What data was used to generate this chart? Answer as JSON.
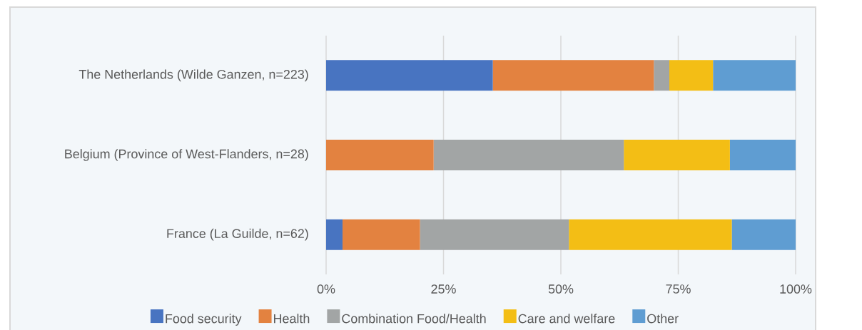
{
  "chart_data": {
    "type": "bar",
    "orientation": "horizontal",
    "stacked": true,
    "categories": [
      "The Netherlands (Wilde Ganzen, n=223)",
      "Belgium (Province of West-Flanders, n=28)",
      "France (La Guilde, n=62)"
    ],
    "series": [
      {
        "name": "Food security",
        "color": "#4874c1",
        "values": [
          35.5,
          0,
          3.5
        ]
      },
      {
        "name": "Health",
        "color": "#e38240",
        "values": [
          34.3,
          22.9,
          16.5
        ]
      },
      {
        "name": "Combination Food/Health",
        "color": "#a2a5a5",
        "values": [
          3.3,
          40.5,
          31.7
        ]
      },
      {
        "name": "Care and welfare",
        "color": "#f3be15",
        "values": [
          9.3,
          22.6,
          34.7
        ]
      },
      {
        "name": "Other",
        "color": "#5f9dd2",
        "values": [
          17.6,
          14.0,
          13.6
        ]
      }
    ],
    "xlim": [
      0,
      100
    ],
    "xticks": [
      {
        "value": 0,
        "label": "0%"
      },
      {
        "value": 25,
        "label": "25%"
      },
      {
        "value": 50,
        "label": "50%"
      },
      {
        "value": 75,
        "label": "75%"
      },
      {
        "value": 100,
        "label": "100%"
      }
    ],
    "grid": "x",
    "legend": "bottom"
  }
}
